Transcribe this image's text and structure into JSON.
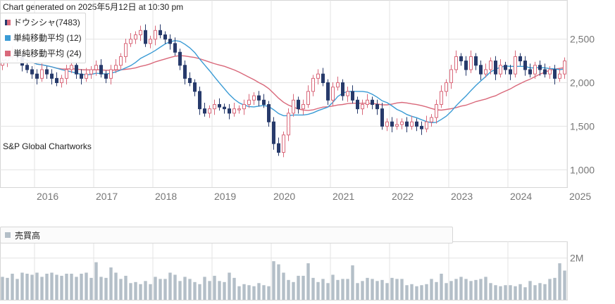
{
  "header": {
    "generated": "Chart generated on 2025年5月12日 at 10:30 pm"
  },
  "watermark": "S&P Global Chartworks",
  "legend": {
    "price": {
      "label": "ドウシシャ(7483)",
      "color": "#d9687a"
    },
    "ma12": {
      "label": "単純移動平均 (12)",
      "color": "#3a9bd5"
    },
    "ma24": {
      "label": "単純移動平均 (24)",
      "color": "#d9687a"
    }
  },
  "volume_legend": {
    "label": "売買高",
    "color": "#b4bfc8"
  },
  "colors": {
    "up": "#d9687a",
    "down": "#273a6b",
    "grid": "#e3e3e3",
    "axis_text": "#777777",
    "volume": "#b4bfc8"
  },
  "chart_data": [
    {
      "type": "candlestick",
      "title": "",
      "series_name": "ドウシシャ(7483)",
      "x_ticks": [
        "2016",
        "2017",
        "2018",
        "2019",
        "2020",
        "2021",
        "2022",
        "2023",
        "2024",
        "2025"
      ],
      "y_ticks": [
        "1,000",
        "1,500",
        "2,000",
        "2,500"
      ],
      "ylim": [
        800,
        2950
      ],
      "x_range": [
        "2015-05",
        "2025-05"
      ],
      "grid": true,
      "legend_position": "top-left",
      "monthly_close": [
        2250,
        2300,
        2350,
        2300,
        2200,
        2150,
        2100,
        2050,
        2150,
        2100,
        2050,
        2000,
        2050,
        2150,
        2200,
        2100,
        2050,
        2100,
        2150,
        2200,
        2100,
        2050,
        2150,
        2200,
        2300,
        2450,
        2500,
        2550,
        2600,
        2450,
        2500,
        2600,
        2550,
        2500,
        2450,
        2350,
        2200,
        2050,
        2000,
        1900,
        1700,
        1650,
        1700,
        1750,
        1720,
        1700,
        1650,
        1700,
        1700,
        1750,
        1800,
        1850,
        1800,
        1750,
        1550,
        1300,
        1200,
        1400,
        1650,
        1800,
        1700,
        1750,
        1900,
        2050,
        2100,
        2000,
        1800,
        1950,
        2000,
        1850,
        1900,
        1800,
        1700,
        1750,
        1800,
        1750,
        1700,
        1500,
        1550,
        1500,
        1520,
        1550,
        1500,
        1550,
        1500,
        1470,
        1550,
        1600,
        1750,
        1900,
        2000,
        2150,
        2300,
        2250,
        2150,
        2300,
        2200,
        2100,
        2150,
        2250,
        2100,
        2200,
        2150,
        2100,
        2300,
        2250,
        2150,
        2100,
        2200,
        2150,
        2100,
        2150,
        2050,
        2100,
        2250
      ]
    },
    {
      "type": "line",
      "series_name": "単純移動平均 (12)",
      "source": "12-month simple moving average of monthly_close"
    },
    {
      "type": "line",
      "series_name": "単純移動平均 (24)",
      "source": "24-month simple moving average of monthly_close"
    },
    {
      "type": "bar",
      "series_name": "売買高",
      "y_ticks": [
        "2M"
      ],
      "ylim": [
        0,
        2800000
      ],
      "monthly_volume": [
        1100000,
        1050000,
        1250000,
        1000000,
        1300000,
        1250000,
        1200000,
        1300000,
        1100000,
        1250000,
        1300000,
        1200000,
        1150000,
        1250000,
        1250000,
        1100000,
        1250000,
        1300000,
        1050000,
        1800000,
        1100000,
        1050000,
        1550000,
        1300000,
        1000000,
        1150000,
        800000,
        850000,
        750000,
        900000,
        750000,
        1100000,
        1000000,
        1000000,
        1300000,
        1200000,
        900000,
        1100000,
        1000000,
        850000,
        750000,
        1100000,
        900000,
        1150000,
        900000,
        850000,
        1300000,
        1050000,
        650000,
        750000,
        700000,
        650000,
        800000,
        700000,
        650000,
        1850000,
        1700000,
        1300000,
        950000,
        850000,
        1150000,
        1150000,
        1750000,
        1050000,
        850000,
        1000000,
        800000,
        1200000,
        950000,
        1000000,
        1000000,
        1650000,
        800000,
        900000,
        1050000,
        1000000,
        900000,
        950000,
        800000,
        1050000,
        1000000,
        1000000,
        700000,
        750000,
        650000,
        700000,
        750000,
        1000000,
        850000,
        1250000,
        800000,
        900000,
        1000000,
        1100000,
        1000000,
        900000,
        950000,
        1000000,
        1100000,
        800000,
        700000,
        650000,
        700000,
        700000,
        650000,
        750000,
        600000,
        900000,
        700000,
        800000,
        750000,
        1000000,
        1050000,
        1750000,
        1400000
      ]
    }
  ]
}
